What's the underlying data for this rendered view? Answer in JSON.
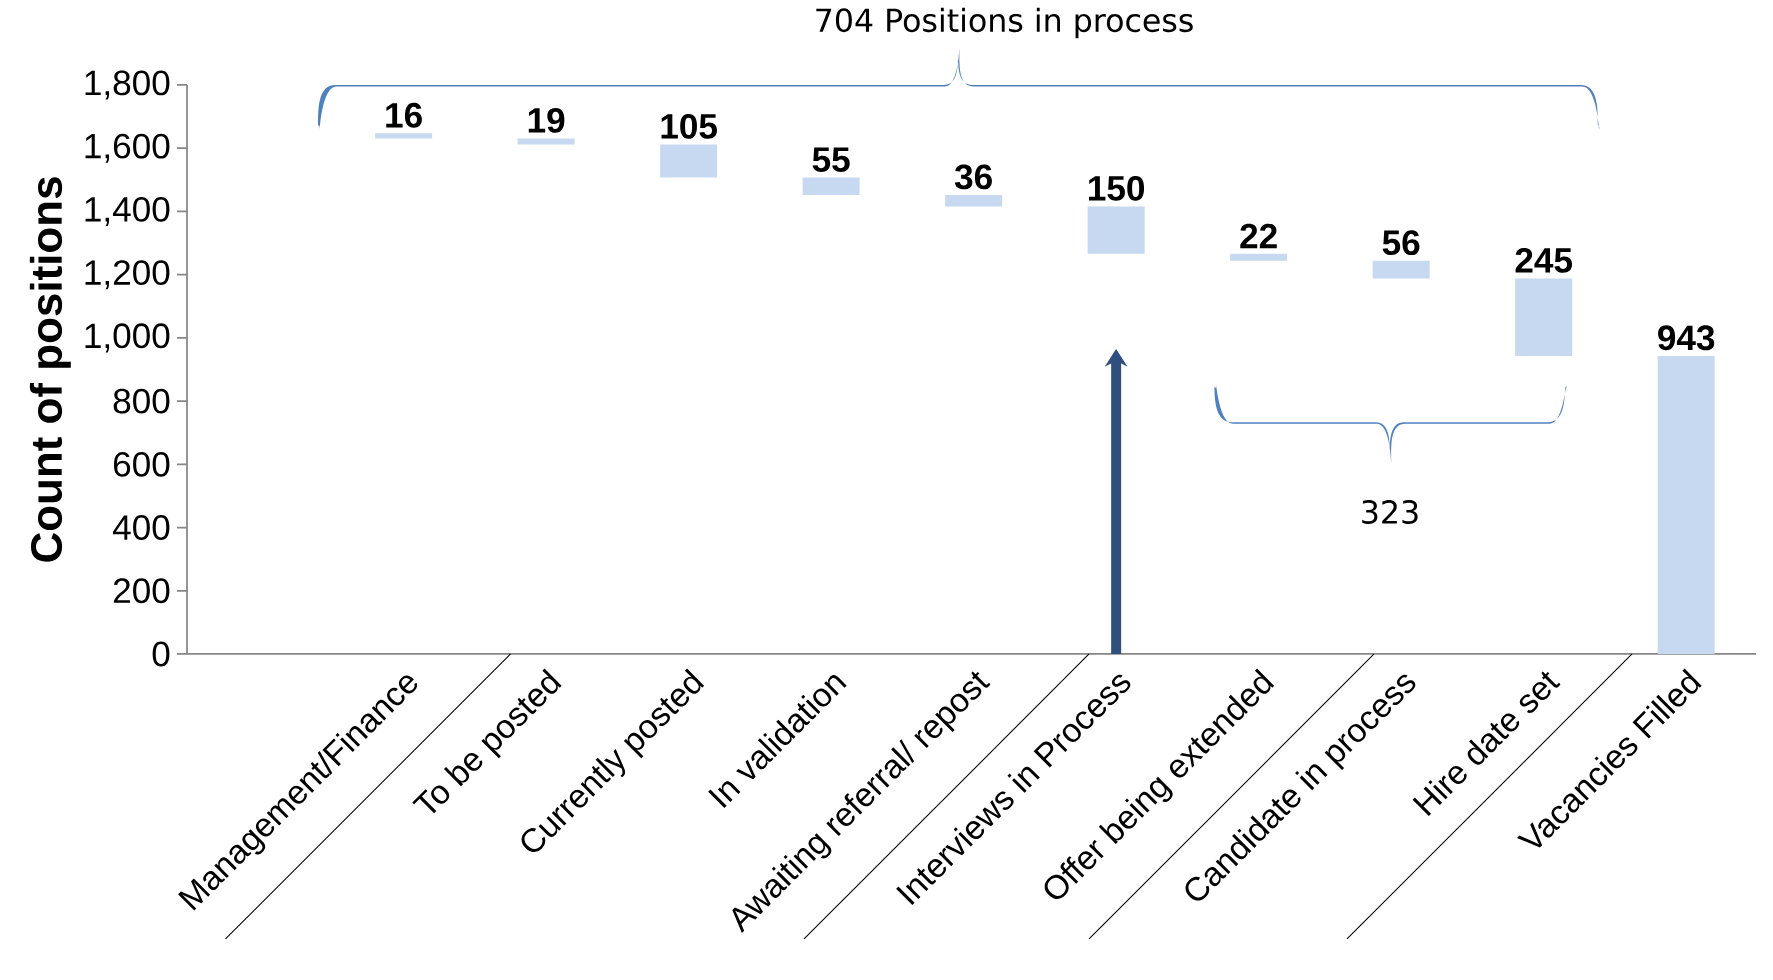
{
  "chart_data": {
    "type": "bar",
    "ylabel": "Count of positions",
    "categories": [
      "Management/Finance",
      "To be posted",
      "Currently posted",
      "In validation",
      "Awaiting referral/ repost",
      "Interviews in Process",
      "Offer being extended",
      "Candidate in process",
      "Hire date set",
      "Vacancies Filled"
    ],
    "values": [
      16,
      19,
      105,
      55,
      36,
      150,
      22,
      56,
      245,
      943
    ],
    "base": [
      1631,
      1612,
      1507,
      1452,
      1416,
      1266,
      1244,
      1188,
      943,
      0
    ],
    "color": "#c6d9f1",
    "data_labels": true,
    "ylim": [
      0,
      1800
    ],
    "yticks": [
      0,
      200,
      400,
      600,
      800,
      {
        "value": 1000,
        "label": "1,000"
      },
      {
        "value": 1200,
        "label": "1,200"
      },
      {
        "value": 1400,
        "label": "1,400"
      },
      {
        "value": 1600,
        "label": "1,600"
      },
      {
        "value": 1800,
        "label": "1,800"
      }
    ],
    "annotations": [
      "704 Positions in process",
      "323"
    ]
  }
}
